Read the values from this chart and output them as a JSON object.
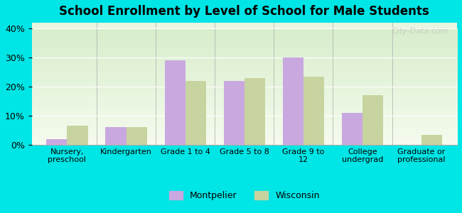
{
  "title": "School Enrollment by Level of School for Male Students",
  "categories": [
    "Nursery,\npreschool",
    "Kindergarten",
    "Grade 1 to 4",
    "Grade 5 to 8",
    "Grade 9 to\n12",
    "College\nundergrad",
    "Graduate or\nprofessional"
  ],
  "montpelier": [
    2,
    6,
    29,
    22,
    30,
    11,
    0
  ],
  "wisconsin": [
    6.5,
    6,
    22,
    23,
    23.5,
    17,
    3.5
  ],
  "montpelier_color": "#c9a8e0",
  "wisconsin_color": "#c8d4a0",
  "background_color": "#00e5e5",
  "plot_bg_top": "#f0f8e8",
  "plot_bg_bottom": "#e8f5e0",
  "ylim": [
    0,
    40
  ],
  "yticks": [
    0,
    10,
    20,
    30,
    40
  ],
  "legend_labels": [
    "Montpelier",
    "Wisconsin"
  ],
  "watermark": "City-Data.com"
}
